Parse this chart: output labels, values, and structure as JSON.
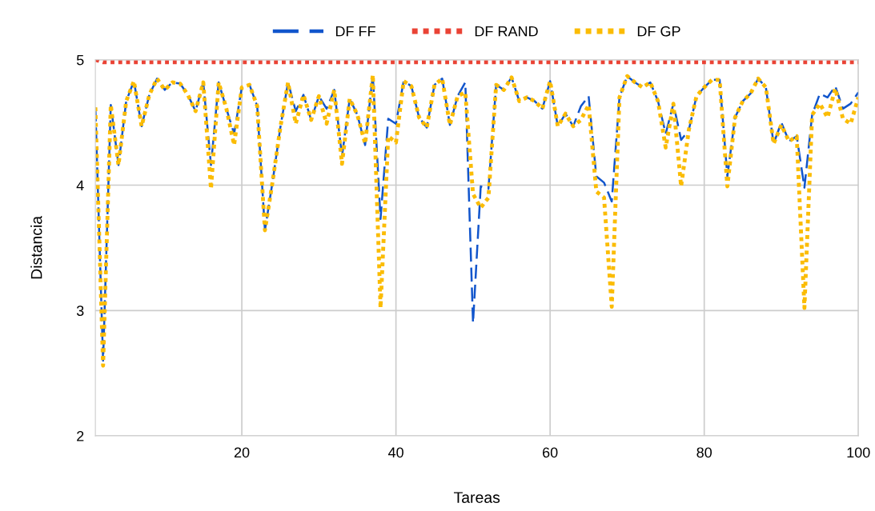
{
  "chart_data": {
    "type": "line",
    "xlabel": "Tareas",
    "ylabel": "Distancia",
    "x": [
      1,
      2,
      3,
      4,
      5,
      6,
      7,
      8,
      9,
      10,
      11,
      12,
      13,
      14,
      15,
      16,
      17,
      18,
      19,
      20,
      21,
      22,
      23,
      24,
      25,
      26,
      27,
      28,
      29,
      30,
      31,
      32,
      33,
      34,
      35,
      36,
      37,
      38,
      39,
      40,
      41,
      42,
      43,
      44,
      45,
      46,
      47,
      48,
      49,
      50,
      51,
      52,
      53,
      54,
      55,
      56,
      57,
      58,
      59,
      60,
      61,
      62,
      63,
      64,
      65,
      66,
      67,
      68,
      69,
      70,
      71,
      72,
      73,
      74,
      75,
      76,
      77,
      78,
      79,
      80,
      81,
      82,
      83,
      84,
      85,
      86,
      87,
      88,
      89,
      90,
      91,
      92,
      93,
      94,
      95,
      96,
      97,
      98,
      99,
      100
    ],
    "series": [
      {
        "name": "DF FF",
        "color": "#1155cc",
        "line_style": "dashed",
        "values": [
          4.62,
          2.6,
          4.64,
          4.16,
          4.67,
          4.83,
          4.47,
          4.72,
          4.85,
          4.76,
          4.82,
          4.81,
          4.72,
          4.59,
          4.82,
          4.16,
          4.82,
          4.61,
          4.41,
          4.78,
          4.8,
          4.63,
          3.64,
          4.03,
          4.46,
          4.82,
          4.59,
          4.72,
          4.52,
          4.71,
          4.61,
          4.76,
          4.23,
          4.69,
          4.56,
          4.32,
          4.88,
          3.73,
          4.53,
          4.49,
          4.83,
          4.79,
          4.54,
          4.46,
          4.8,
          4.85,
          4.48,
          4.71,
          4.82,
          2.9,
          3.99,
          3.97,
          4.8,
          4.76,
          4.86,
          4.67,
          4.7,
          4.67,
          4.61,
          4.83,
          4.47,
          4.57,
          4.47,
          4.63,
          4.71,
          4.07,
          4.02,
          3.87,
          4.7,
          4.87,
          4.82,
          4.78,
          4.82,
          4.67,
          4.41,
          4.65,
          4.36,
          4.44,
          4.71,
          4.78,
          4.84,
          4.84,
          4.07,
          4.54,
          4.67,
          4.73,
          4.85,
          4.78,
          4.33,
          4.5,
          4.35,
          4.39,
          3.98,
          4.56,
          4.73,
          4.7,
          4.79,
          4.61,
          4.65,
          4.74
        ]
      },
      {
        "name": "DF RAND",
        "color": "#ea4335",
        "line_style": "dotted",
        "values": [
          5.0,
          4.98,
          4.98,
          4.98,
          4.98,
          4.98,
          4.98,
          4.98,
          4.98,
          4.98,
          4.98,
          4.98,
          4.98,
          4.98,
          4.98,
          4.98,
          4.98,
          4.98,
          4.98,
          4.98,
          4.98,
          4.98,
          4.98,
          4.98,
          4.98,
          4.98,
          4.98,
          4.98,
          4.98,
          4.98,
          4.98,
          4.98,
          4.98,
          4.98,
          4.98,
          4.98,
          4.98,
          4.98,
          4.98,
          4.98,
          4.98,
          4.98,
          4.98,
          4.98,
          4.98,
          4.98,
          4.98,
          4.98,
          4.98,
          4.98,
          4.98,
          4.98,
          4.98,
          4.98,
          4.98,
          4.98,
          4.98,
          4.98,
          4.98,
          4.98,
          4.98,
          4.98,
          4.98,
          4.98,
          4.98,
          4.98,
          4.98,
          4.98,
          4.98,
          4.98,
          4.98,
          4.98,
          4.98,
          4.98,
          4.98,
          4.98,
          4.98,
          4.98,
          4.98,
          4.98,
          4.98,
          4.98,
          4.98,
          4.98,
          4.98,
          4.98,
          4.98,
          4.98,
          4.98,
          4.98,
          4.98,
          4.98,
          4.98,
          4.98,
          4.98,
          4.98,
          4.98,
          4.98,
          4.98,
          4.98
        ]
      },
      {
        "name": "DF GP",
        "color": "#fbbc04",
        "line_style": "dotted",
        "values": [
          4.62,
          2.56,
          4.64,
          4.16,
          4.67,
          4.83,
          4.47,
          4.72,
          4.85,
          4.76,
          4.82,
          4.81,
          4.72,
          4.59,
          4.82,
          3.97,
          4.82,
          4.61,
          4.32,
          4.78,
          4.8,
          4.63,
          3.64,
          4.03,
          4.46,
          4.82,
          4.49,
          4.72,
          4.52,
          4.71,
          4.49,
          4.76,
          4.17,
          4.69,
          4.56,
          4.33,
          4.88,
          3.02,
          4.39,
          4.34,
          4.83,
          4.79,
          4.54,
          4.46,
          4.8,
          4.85,
          4.48,
          4.71,
          4.74,
          3.93,
          3.82,
          3.9,
          4.8,
          4.76,
          4.86,
          4.67,
          4.7,
          4.67,
          4.61,
          4.83,
          4.47,
          4.57,
          4.47,
          4.52,
          4.64,
          3.95,
          3.9,
          3.03,
          4.7,
          4.87,
          4.82,
          4.78,
          4.82,
          4.67,
          4.3,
          4.65,
          3.99,
          4.44,
          4.71,
          4.78,
          4.84,
          4.84,
          3.99,
          4.54,
          4.67,
          4.73,
          4.85,
          4.78,
          4.33,
          4.48,
          4.35,
          4.39,
          3.02,
          4.56,
          4.65,
          4.54,
          4.77,
          4.53,
          4.49,
          4.7
        ]
      }
    ],
    "xlim": [
      1,
      100
    ],
    "xticks": [
      20,
      40,
      60,
      80,
      100
    ],
    "ylim": [
      2,
      5
    ],
    "yticks": [
      2,
      3,
      4,
      5
    ],
    "grid": true,
    "legend": "top"
  }
}
